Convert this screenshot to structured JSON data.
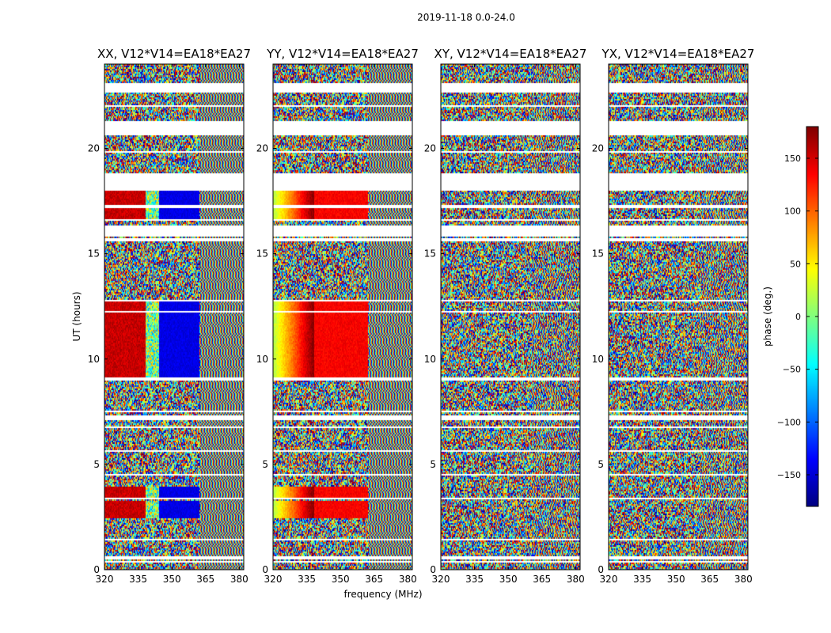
{
  "chart_data": {
    "type": "heatmap",
    "title": "2019-11-18 0.0-24.0",
    "xlabel": "frequency (MHz)",
    "ylabel": "UT (hours)",
    "xlim": [
      320,
      382
    ],
    "ylim": [
      0,
      24
    ],
    "xticks": [
      320,
      335,
      350,
      365,
      380
    ],
    "yticks": [
      0,
      5,
      10,
      15,
      20
    ],
    "panels": [
      {
        "name": "XX",
        "title": "XX, V12*V14=EA18*EA27",
        "mode": "coherent-xx"
      },
      {
        "name": "YY",
        "title": "YY, V12*V14=EA18*EA27",
        "mode": "coherent-yy"
      },
      {
        "name": "XY",
        "title": "XY, V12*V14=EA18*EA27",
        "mode": "noise"
      },
      {
        "name": "YX",
        "title": "YX, V12*V14=EA18*EA27",
        "mode": "noise"
      }
    ],
    "flagged_ut_ranges": [
      [
        0.38,
        0.42
      ],
      [
        0.55,
        0.65
      ],
      [
        1.4,
        1.5
      ],
      [
        2.45,
        2.5
      ],
      [
        3.35,
        3.42
      ],
      [
        4.5,
        4.55
      ],
      [
        5.65,
        5.7
      ],
      [
        6.75,
        6.85
      ],
      [
        7.1,
        7.35
      ],
      [
        7.5,
        7.55
      ],
      [
        9.05,
        9.15
      ],
      [
        12.25,
        12.3
      ],
      [
        12.75,
        12.82
      ],
      [
        15.65,
        15.75
      ],
      [
        15.85,
        16.4
      ],
      [
        16.6,
        16.65
      ],
      [
        17.2,
        17.35
      ],
      [
        18.0,
        18.85
      ],
      [
        19.85,
        19.92
      ],
      [
        20.65,
        21.3
      ],
      [
        22.0,
        22.1
      ],
      [
        22.7,
        23.1
      ],
      [
        23.25,
        23.3
      ],
      [
        23.55,
        23.6
      ]
    ],
    "coherent_ut_ranges": [
      [
        2.5,
        3.3
      ],
      [
        3.4,
        4.0
      ],
      [
        9.2,
        9.8
      ],
      [
        9.8,
        12.8
      ],
      [
        16.65,
        18.0
      ]
    ],
    "colorbar": {
      "label": "phase (deg.)",
      "range": [
        -180,
        180
      ],
      "ticks": [
        -150,
        -100,
        -50,
        0,
        50,
        100,
        150
      ],
      "tick_labels": [
        "−150",
        "−100",
        "−50",
        "0",
        "50",
        "100",
        "150"
      ]
    }
  }
}
